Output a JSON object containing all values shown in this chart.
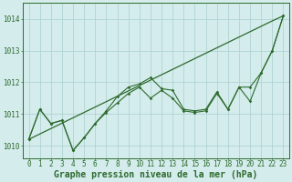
{
  "x": [
    0,
    1,
    2,
    3,
    4,
    5,
    6,
    7,
    8,
    9,
    10,
    11,
    12,
    13,
    14,
    15,
    16,
    17,
    18,
    19,
    20,
    21,
    22,
    23
  ],
  "line_straight": [
    1010.2,
    1010.37,
    1010.54,
    1010.71,
    1010.88,
    1011.05,
    1011.22,
    1011.39,
    1011.56,
    1011.73,
    1011.9,
    1012.07,
    1012.24,
    1012.41,
    1012.58,
    1012.75,
    1012.92,
    1013.09,
    1013.26,
    1013.43,
    1013.6,
    1013.77,
    1013.94,
    1014.1
  ],
  "line_upper": [
    1010.2,
    1011.15,
    1010.7,
    1010.8,
    1009.85,
    1010.25,
    1010.7,
    1011.1,
    1011.55,
    1011.85,
    1011.95,
    1012.15,
    1011.8,
    1011.75,
    1011.15,
    1011.1,
    1011.15,
    1011.7,
    1011.15,
    1011.85,
    1011.85,
    1012.3,
    1013.0,
    1014.1
  ],
  "line_lower": [
    1010.2,
    1011.15,
    1010.7,
    1010.8,
    1009.85,
    1010.25,
    1010.7,
    1011.05,
    1011.35,
    1011.65,
    1011.85,
    1011.5,
    1011.75,
    1011.5,
    1011.1,
    1011.05,
    1011.1,
    1011.65,
    1011.15,
    1011.85,
    1011.4,
    1012.3,
    1013.0,
    1014.1
  ],
  "ylim_min": 1009.6,
  "ylim_max": 1014.5,
  "yticks": [
    1010,
    1011,
    1012,
    1013,
    1014
  ],
  "xtick_labels": [
    "0",
    "1",
    "2",
    "3",
    "4",
    "5",
    "6",
    "7",
    "8",
    "9",
    "10",
    "11",
    "12",
    "13",
    "14",
    "15",
    "16",
    "17",
    "18",
    "19",
    "20",
    "21",
    "22",
    "23"
  ],
  "line_color": "#2d6a2d",
  "bg_color": "#d4ecec",
  "grid_color": "#aacece",
  "xlabel": "Graphe pression niveau de la mer (hPa)",
  "xlabel_fontsize": 7.0,
  "tick_fontsize": 5.5,
  "figwidth": 3.2,
  "figheight": 2.0,
  "dpi": 100
}
